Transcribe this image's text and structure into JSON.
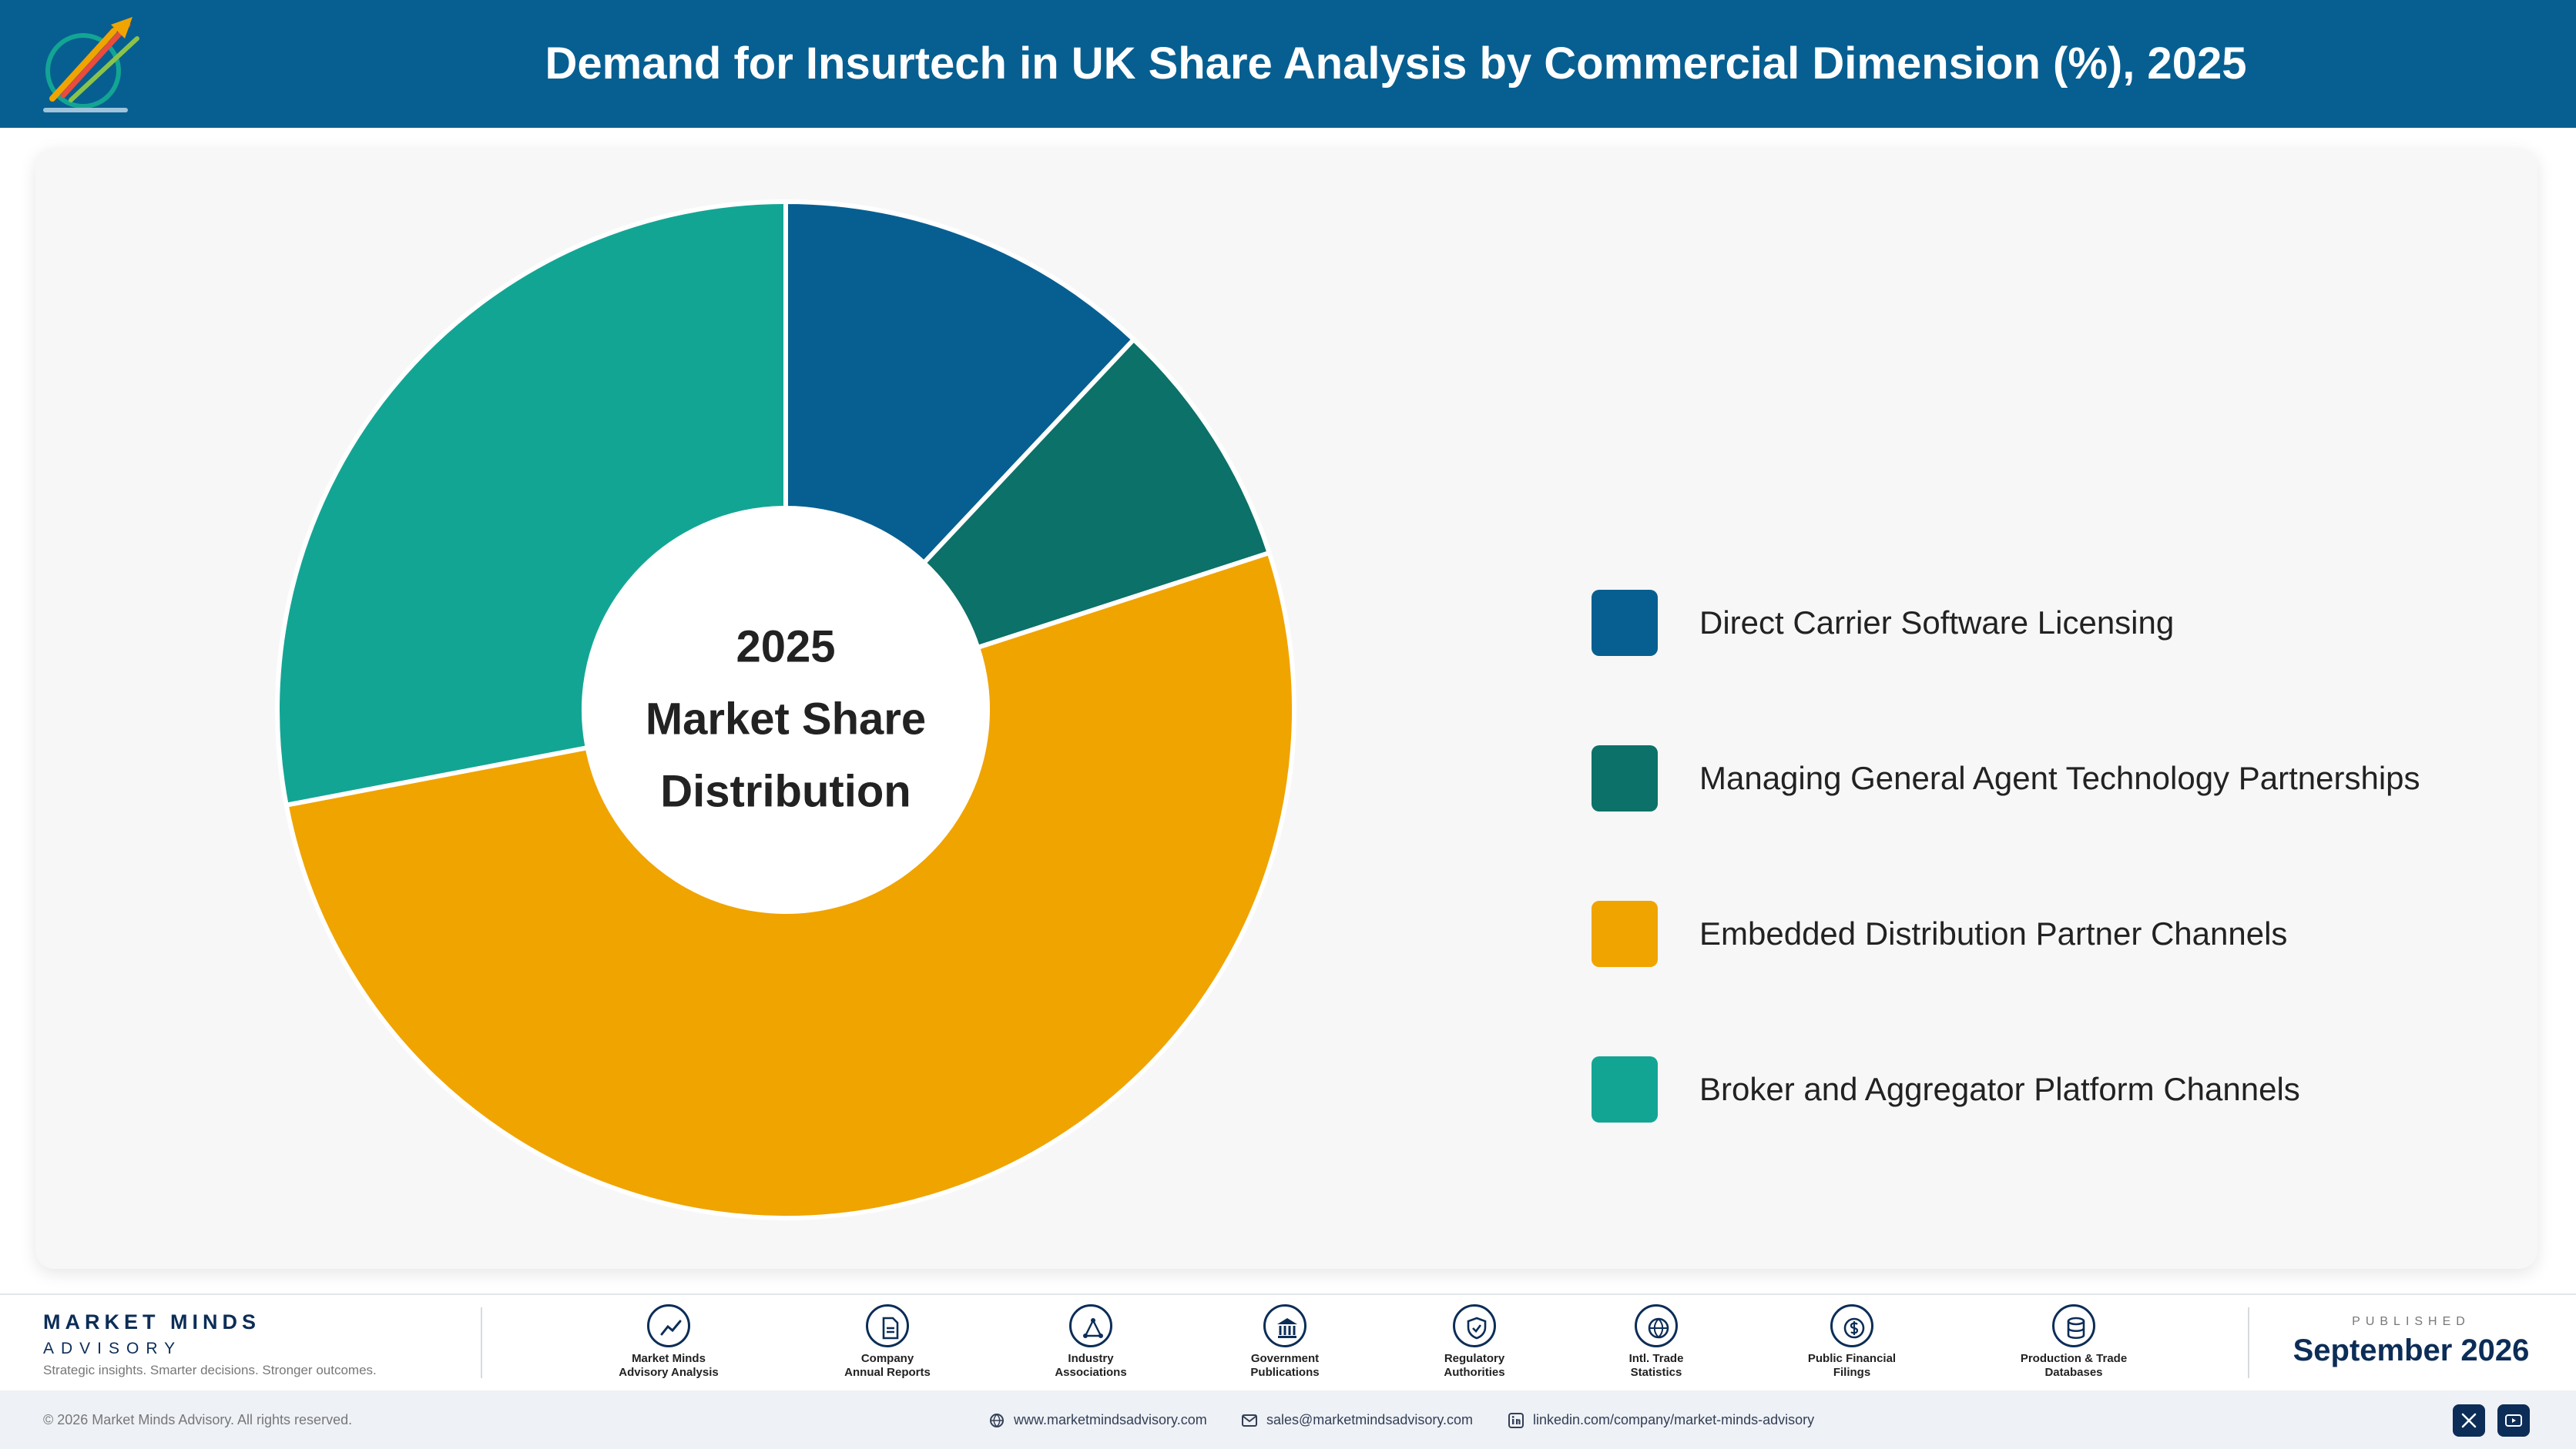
{
  "header": {
    "title": "Demand for Insurtech in UK Share Analysis by Commercial Dimension (%), 2025",
    "logo_icon": "market-minds-logo"
  },
  "chart_data": {
    "type": "pie",
    "variant": "donut",
    "title": "Demand for Insurtech in UK Share Analysis by Commercial Dimension (%), 2025",
    "center_label": [
      "2025",
      "Market Share",
      "Distribution"
    ],
    "legend_position": "right",
    "categories": [
      "Direct Carrier Software Licensing",
      "Managing General Agent Technology Partnerships",
      "Embedded Distribution Partner Channels",
      "Broker and Aggregator Platform Channels"
    ],
    "values": [
      12,
      8,
      52,
      28
    ],
    "colors": [
      "#075f91",
      "#0c7168",
      "#f0a400",
      "#13a594"
    ]
  },
  "footer": {
    "brand_name": "MARKET MINDS",
    "brand_sub": "ADVISORY",
    "tagline": "Strategic insights. Smarter decisions. Stronger outcomes.",
    "sources": [
      {
        "line1": "Market Minds",
        "line2": "Advisory Analysis",
        "icon": "chart-line-icon"
      },
      {
        "line1": "Company",
        "line2": "Annual Reports",
        "icon": "document-icon"
      },
      {
        "line1": "Industry",
        "line2": "Associations",
        "icon": "network-icon"
      },
      {
        "line1": "Government",
        "line2": "Publications",
        "icon": "government-building-icon"
      },
      {
        "line1": "Regulatory",
        "line2": "Authorities",
        "icon": "shield-check-icon"
      },
      {
        "line1": "Intl. Trade",
        "line2": "Statistics",
        "icon": "globe-icon"
      },
      {
        "line1": "Public Financial",
        "line2": "Filings",
        "icon": "coin-icon"
      },
      {
        "line1": "Production & Trade",
        "line2": "Databases",
        "icon": "database-icon"
      }
    ],
    "published_kicker": "PUBLISHED",
    "published_date": "September 2026"
  },
  "bottom_bar": {
    "copyright": "© 2026 Market Minds Advisory. All rights reserved.",
    "website": "www.marketmindsadvisory.com",
    "email": "sales@marketmindsadvisory.com",
    "linkedin": "linkedin.com/company/market-minds-advisory",
    "social_icons": [
      "x-icon",
      "youtube-icon"
    ]
  }
}
